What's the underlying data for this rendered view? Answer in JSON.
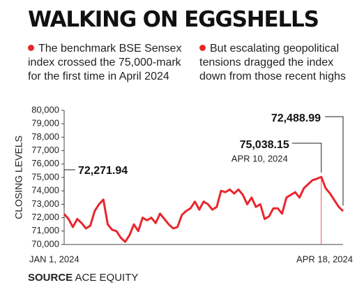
{
  "chart_data": {
    "type": "line",
    "title": "WALKING ON EGGSHELLS",
    "notes": [
      "The benchmark BSE Sensex index crossed the 75,000-mark for the first time in April 2024",
      "But escalating geopolitical tensions dragged the index down from those recent highs"
    ],
    "y_label": "CLOSING LEVELS",
    "source": {
      "label": "SOURCE",
      "text": "ACE EQUITY"
    },
    "color": "#e8262d",
    "grid": false,
    "ylim": [
      70000,
      80000
    ],
    "yticks": [
      {
        "value": 70000,
        "label": "70,000"
      },
      {
        "value": 71000,
        "label": "71,000"
      },
      {
        "value": 72000,
        "label": "72,000"
      },
      {
        "value": 73000,
        "label": "73,000"
      },
      {
        "value": 74000,
        "label": "74,000"
      },
      {
        "value": 75000,
        "label": "75,000"
      },
      {
        "value": 76000,
        "label": "76,000"
      },
      {
        "value": 77000,
        "label": "77,000"
      },
      {
        "value": 78000,
        "label": "78,000"
      },
      {
        "value": 79000,
        "label": "79,000"
      },
      {
        "value": 80000,
        "label": "80,000"
      }
    ],
    "categories": [
      "JAN 1, 2024",
      null,
      null,
      null,
      null,
      null,
      null,
      null,
      null,
      null,
      null,
      null,
      null,
      null,
      null,
      null,
      null,
      null,
      null,
      null,
      null,
      null,
      null,
      null,
      null,
      null,
      null,
      null,
      null,
      null,
      null,
      null,
      null,
      null,
      null,
      null,
      null,
      null,
      null,
      null,
      null,
      null,
      null,
      null,
      null,
      null,
      null,
      null,
      null,
      null,
      null,
      null,
      null,
      null,
      null,
      null,
      null,
      null,
      null,
      "APR 10, 2024",
      null,
      null,
      null,
      null,
      "APR 18, 2024"
    ],
    "values": [
      72271.94,
      71900,
      71300,
      71900,
      71600,
      71200,
      71400,
      72500,
      73000,
      73350,
      71500,
      71100,
      71000,
      70500,
      70200,
      70700,
      71500,
      71000,
      72000,
      71800,
      72000,
      71600,
      72300,
      71900,
      71500,
      71200,
      71300,
      72200,
      72500,
      72700,
      73200,
      72600,
      73200,
      73000,
      72600,
      72800,
      74000,
      73900,
      74100,
      73800,
      74100,
      73700,
      73000,
      73500,
      72800,
      73000,
      71900,
      72100,
      72700,
      72700,
      72300,
      73500,
      73700,
      73900,
      73500,
      74200,
      74500,
      74800,
      74900,
      75038.15,
      74200,
      73800,
      73300,
      72800,
      72488.99
    ],
    "value_labels": [
      "72,271.94",
      null,
      null,
      null,
      null,
      null,
      null,
      null,
      null,
      null,
      null,
      null,
      null,
      null,
      null,
      null,
      null,
      null,
      null,
      null,
      null,
      null,
      null,
      null,
      null,
      null,
      null,
      null,
      null,
      null,
      null,
      null,
      null,
      null,
      null,
      null,
      null,
      null,
      null,
      null,
      null,
      null,
      null,
      null,
      null,
      null,
      null,
      null,
      null,
      null,
      null,
      null,
      null,
      null,
      null,
      null,
      null,
      null,
      null,
      "75,038.15",
      null,
      null,
      null,
      null,
      "72,488.99"
    ]
  }
}
